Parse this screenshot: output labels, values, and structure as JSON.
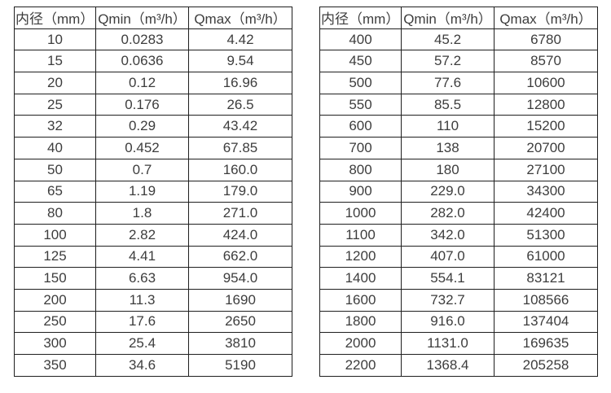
{
  "page": {
    "background": "#ffffff",
    "border_color": "#1f1f1f",
    "text_color": "#3d3d3d"
  },
  "chart_data": [
    {
      "type": "table",
      "name": "flow-rate-table-small-diameters",
      "columns": [
        "内径（mm）",
        "Qmin（m³/h）",
        "Qmax（m³/h）"
      ],
      "rows": [
        [
          "10",
          "0.0283",
          "4.42"
        ],
        [
          "15",
          "0.0636",
          "9.54"
        ],
        [
          "20",
          "0.12",
          "16.96"
        ],
        [
          "25",
          "0.176",
          "26.5"
        ],
        [
          "32",
          "0.29",
          "43.42"
        ],
        [
          "40",
          "0.452",
          "67.85"
        ],
        [
          "50",
          "0.7",
          "160.0"
        ],
        [
          "65",
          "1.19",
          "179.0"
        ],
        [
          "80",
          "1.8",
          "271.0"
        ],
        [
          "100",
          "2.82",
          "424.0"
        ],
        [
          "125",
          "4.41",
          "662.0"
        ],
        [
          "150",
          "6.63",
          "954.0"
        ],
        [
          "200",
          "11.3",
          "1690"
        ],
        [
          "250",
          "17.6",
          "2650"
        ],
        [
          "300",
          "25.4",
          "3810"
        ],
        [
          "350",
          "34.6",
          "5190"
        ]
      ]
    },
    {
      "type": "table",
      "name": "flow-rate-table-large-diameters",
      "columns": [
        "内径（mm）",
        "Qmin（m³/h）",
        "Qmax（m³/h）"
      ],
      "rows": [
        [
          "400",
          "45.2",
          "6780"
        ],
        [
          "450",
          "57.2",
          "8570"
        ],
        [
          "500",
          "77.6",
          "10600"
        ],
        [
          "550",
          "85.5",
          "12800"
        ],
        [
          "600",
          "110",
          "15200"
        ],
        [
          "700",
          "138",
          "20700"
        ],
        [
          "800",
          "180",
          "27100"
        ],
        [
          "900",
          "229.0",
          "34300"
        ],
        [
          "1000",
          "282.0",
          "42400"
        ],
        [
          "1100",
          "342.0",
          "51300"
        ],
        [
          "1200",
          "407.0",
          "61000"
        ],
        [
          "1400",
          "554.1",
          "83121"
        ],
        [
          "1600",
          "732.7",
          "108566"
        ],
        [
          "1800",
          "916.0",
          "137404"
        ],
        [
          "2000",
          "1131.0",
          "169635"
        ],
        [
          "2200",
          "1368.4",
          "205258"
        ]
      ]
    }
  ]
}
